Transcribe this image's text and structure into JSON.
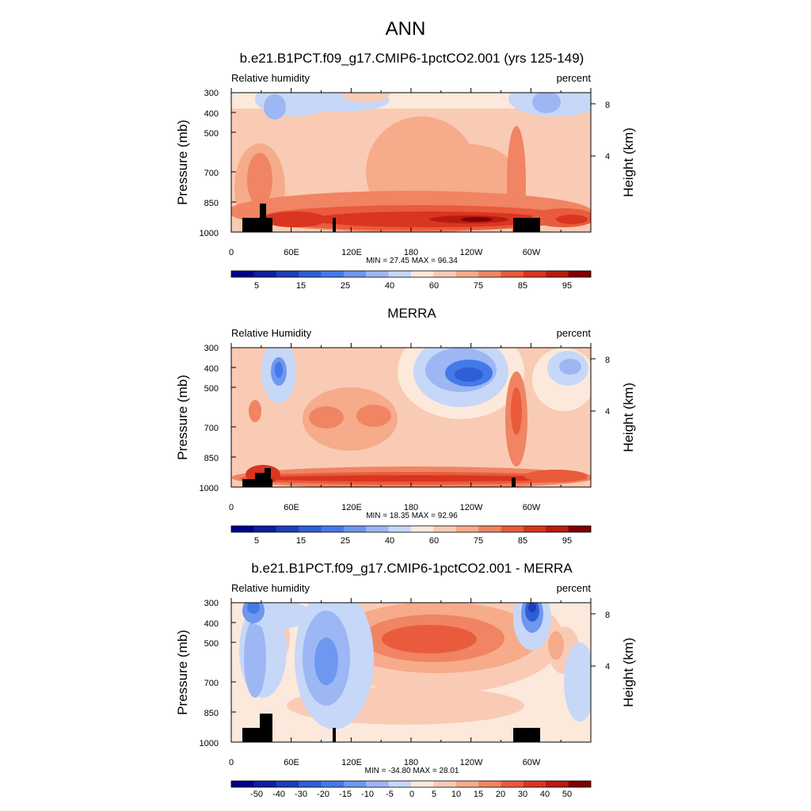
{
  "main_title": "ANN",
  "chart_data": [
    {
      "type": "contour",
      "title": "b.e21.B1PCT.f09_g17.CMIP6-1pctCO2.001 (yrs 125-149)",
      "left_label": "Relative humidity",
      "right_label": "percent",
      "ylabel": "Pressure (mb)",
      "ylabel_right": "Height (km)",
      "y_ticks": [
        "300",
        "400",
        "500",
        "700",
        "850",
        "1000"
      ],
      "y_tick_values": [
        300,
        400,
        500,
        700,
        850,
        1000
      ],
      "y_right_ticks": [
        "8",
        "4"
      ],
      "y_right_tick_values": [
        8,
        4
      ],
      "x_ticks": [
        "0",
        "60E",
        "120E",
        "180",
        "120W",
        "60W"
      ],
      "x_tick_values": [
        0,
        60,
        120,
        180,
        240,
        300
      ],
      "xlim": [
        0,
        360
      ],
      "ylim": [
        1000,
        300
      ],
      "stats": "MIN =  27.45  MAX =  96.34",
      "min": 27.45,
      "max": 96.34,
      "colorbar_labels": [
        "5",
        "15",
        "25",
        "40",
        "60",
        "75",
        "85",
        "95"
      ],
      "colorbar_levels": [
        5,
        10,
        15,
        20,
        25,
        30,
        40,
        50,
        60,
        70,
        75,
        80,
        85,
        90,
        95
      ]
    },
    {
      "type": "contour",
      "title": "MERRA",
      "left_label": "Relative Humidity",
      "right_label": "percent",
      "ylabel": "Pressure (mb)",
      "ylabel_right": "Height (km)",
      "y_ticks": [
        "300",
        "400",
        "500",
        "700",
        "850",
        "1000"
      ],
      "y_tick_values": [
        300,
        400,
        500,
        700,
        850,
        1000
      ],
      "y_right_ticks": [
        "8",
        "4"
      ],
      "y_right_tick_values": [
        8,
        4
      ],
      "x_ticks": [
        "0",
        "60E",
        "120E",
        "180",
        "120W",
        "60W"
      ],
      "x_tick_values": [
        0,
        60,
        120,
        180,
        240,
        300
      ],
      "xlim": [
        0,
        360
      ],
      "ylim": [
        1000,
        300
      ],
      "stats": "MIN =  18.35  MAX =  92.96",
      "min": 18.35,
      "max": 92.96,
      "colorbar_labels": [
        "5",
        "15",
        "25",
        "40",
        "60",
        "75",
        "85",
        "95"
      ],
      "colorbar_levels": [
        5,
        10,
        15,
        20,
        25,
        30,
        40,
        50,
        60,
        70,
        75,
        80,
        85,
        90,
        95
      ]
    },
    {
      "type": "contour",
      "title": "b.e21.B1PCT.f09_g17.CMIP6-1pctCO2.001 - MERRA",
      "left_label": "Relative humidity",
      "right_label": "percent",
      "ylabel": "Pressure (mb)",
      "ylabel_right": "Height (km)",
      "y_ticks": [
        "300",
        "400",
        "500",
        "700",
        "850",
        "1000"
      ],
      "y_tick_values": [
        300,
        400,
        500,
        700,
        850,
        1000
      ],
      "y_right_ticks": [
        "8",
        "4"
      ],
      "y_right_tick_values": [
        8,
        4
      ],
      "x_ticks": [
        "0",
        "60E",
        "120E",
        "180",
        "120W",
        "60W"
      ],
      "x_tick_values": [
        0,
        60,
        120,
        180,
        240,
        300
      ],
      "xlim": [
        0,
        360
      ],
      "ylim": [
        1000,
        300
      ],
      "stats": "MIN = -34.80  MAX =  28.01",
      "min": -34.8,
      "max": 28.01,
      "colorbar_labels": [
        "-50",
        "-40",
        "-30",
        "-20",
        "-15",
        "-10",
        "-5",
        "0",
        "5",
        "10",
        "15",
        "20",
        "30",
        "40",
        "50"
      ],
      "colorbar_levels": [
        -50,
        -40,
        -30,
        -20,
        -15,
        -10,
        -5,
        0,
        5,
        10,
        15,
        20,
        30,
        40,
        50
      ]
    }
  ],
  "colorbar_colors": [
    "#00008b",
    "#0d1ea0",
    "#1c3fb8",
    "#2d5fd6",
    "#4479e8",
    "#6e97f0",
    "#9cb7f4",
    "#c7d7f7",
    "#fce9dc",
    "#f9cbb4",
    "#f6ab8a",
    "#f08463",
    "#e95b3c",
    "#d93520",
    "#b81c10",
    "#800000"
  ]
}
